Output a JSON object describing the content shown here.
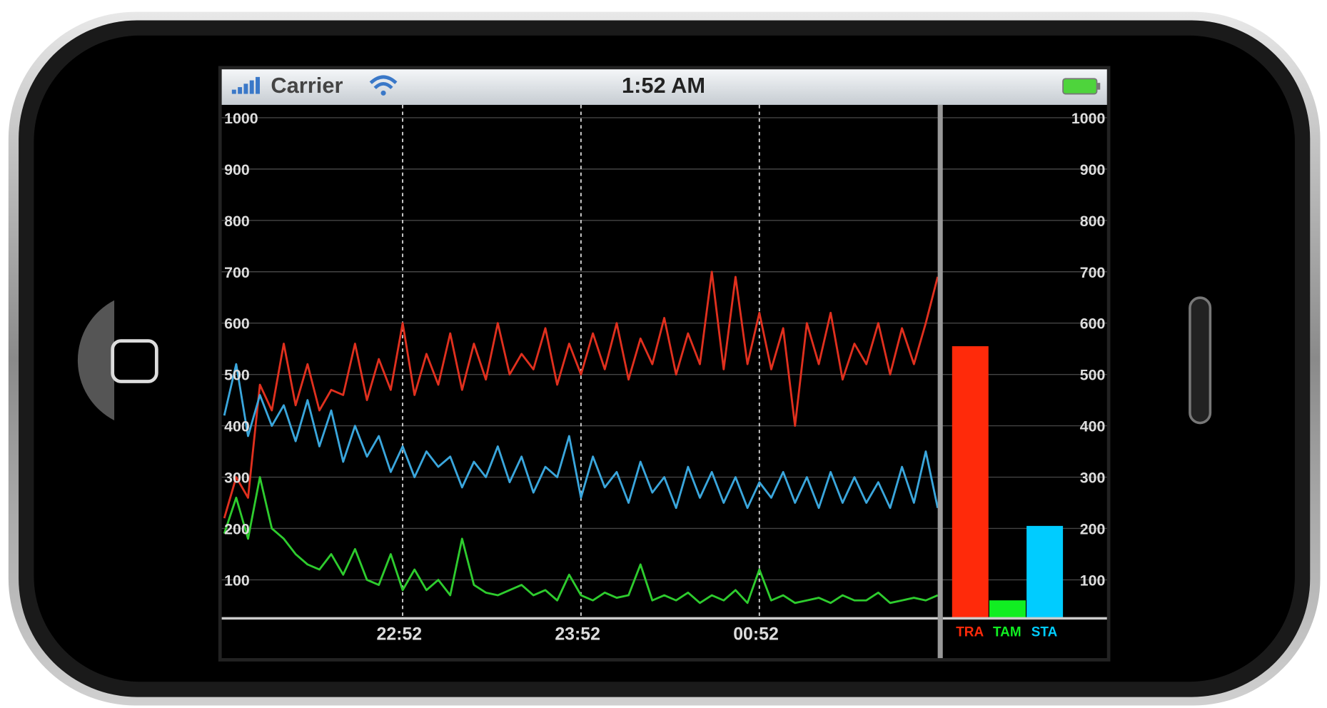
{
  "status_bar": {
    "carrier": "Carrier",
    "time": "1:52 AM"
  },
  "chart_data": [
    {
      "type": "line",
      "x": [
        0,
        4,
        8,
        12,
        16,
        20,
        24,
        28,
        32,
        36,
        40,
        44,
        48,
        52,
        56,
        60,
        64,
        68,
        72,
        76,
        80,
        84,
        88,
        92,
        96,
        100,
        104,
        108,
        112,
        116,
        120,
        124,
        128,
        132,
        136,
        140,
        144,
        148,
        152,
        156,
        160,
        164,
        168,
        172,
        176,
        180,
        184,
        188,
        192,
        196,
        200,
        204,
        208,
        212,
        216,
        220,
        224,
        228,
        232,
        236,
        240
      ],
      "xlim": [
        0,
        240
      ],
      "xticks": [
        {
          "value": 60,
          "label": "22:52"
        },
        {
          "value": 120,
          "label": "23:52"
        },
        {
          "value": 180,
          "label": "00:52"
        }
      ],
      "ylim": [
        25,
        1025
      ],
      "yticks": [
        100,
        200,
        300,
        400,
        500,
        600,
        700,
        800,
        900,
        1000
      ],
      "grid": true,
      "series": [
        {
          "color": "#e0301e",
          "values": [
            220,
            300,
            260,
            480,
            430,
            560,
            440,
            520,
            430,
            470,
            460,
            560,
            450,
            530,
            470,
            600,
            460,
            540,
            480,
            580,
            470,
            560,
            490,
            600,
            500,
            540,
            510,
            590,
            480,
            560,
            500,
            580,
            510,
            600,
            490,
            570,
            520,
            610,
            500,
            580,
            520,
            700,
            510,
            690,
            520,
            620,
            510,
            590,
            400,
            600,
            520,
            620,
            490,
            560,
            520,
            600,
            500,
            590,
            520,
            600,
            690
          ]
        },
        {
          "color": "#3aa6dc",
          "values": [
            420,
            520,
            380,
            460,
            400,
            440,
            370,
            450,
            360,
            430,
            330,
            400,
            340,
            380,
            310,
            360,
            300,
            350,
            320,
            340,
            280,
            330,
            300,
            360,
            290,
            340,
            270,
            320,
            300,
            380,
            260,
            340,
            280,
            310,
            250,
            330,
            270,
            300,
            240,
            320,
            260,
            310,
            250,
            300,
            240,
            290,
            260,
            310,
            250,
            300,
            240,
            310,
            250,
            300,
            250,
            290,
            240,
            320,
            250,
            350,
            240
          ]
        },
        {
          "color": "#2ecc2e",
          "values": [
            190,
            260,
            180,
            300,
            200,
            180,
            150,
            130,
            120,
            150,
            110,
            160,
            100,
            90,
            150,
            80,
            120,
            80,
            100,
            70,
            180,
            90,
            75,
            70,
            80,
            90,
            70,
            80,
            60,
            110,
            70,
            60,
            75,
            65,
            70,
            130,
            60,
            70,
            60,
            75,
            55,
            70,
            60,
            80,
            55,
            120,
            60,
            70,
            55,
            60,
            65,
            55,
            70,
            60,
            60,
            75,
            55,
            60,
            65,
            60,
            70
          ]
        }
      ]
    },
    {
      "type": "bar",
      "categories": [
        "TRA",
        "TAM",
        "STA"
      ],
      "values": [
        555,
        60,
        205
      ],
      "colors": [
        "#ff2a0a",
        "#11ee22",
        "#00ccff"
      ],
      "ylim": [
        25,
        1025
      ],
      "yticks": [
        100,
        200,
        300,
        400,
        500,
        600,
        700,
        800,
        900,
        1000
      ]
    }
  ]
}
